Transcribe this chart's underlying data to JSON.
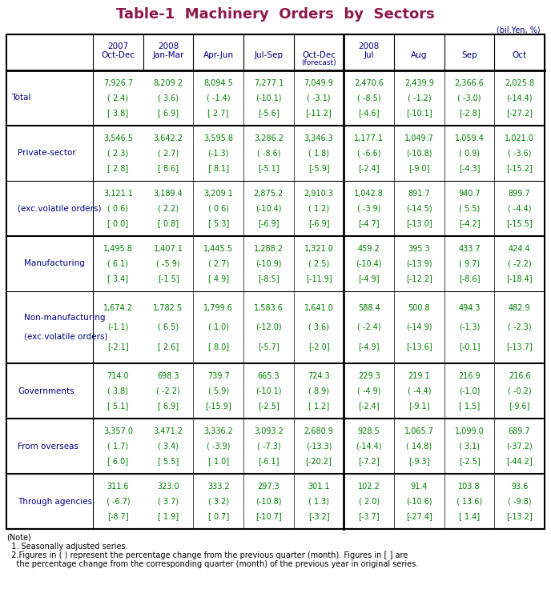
{
  "title": "Table-1  Machinery  Orders  by  Sectors",
  "title_color": "#8B1A4A",
  "unit_label": "(bil.Yen, %)",
  "year_labels": [
    "2007",
    "2008",
    "",
    "",
    "",
    "2008",
    "",
    "",
    ""
  ],
  "period_labels": [
    "Oct-Dec",
    "Jan-Mar",
    "Apr-Jun",
    "Jul-Sep",
    "Oct-Dec",
    "Jul",
    "Aug",
    "Sep",
    "Oct"
  ],
  "forecast_label": "(forecast)",
  "rows": [
    {
      "label": [
        "Total"
      ],
      "label_indent": 0,
      "row_span": 1,
      "values": [
        [
          "7,926.7",
          "( 2.4)",
          "[ 3.8]"
        ],
        [
          "8,209.2",
          "( 3.6)",
          "[ 6.9]"
        ],
        [
          "8,094.5",
          "( -1.4)",
          "[ 2.7]"
        ],
        [
          "7,277.1",
          "(-10.1)",
          "[-5.6]"
        ],
        [
          "7,049.9",
          "( -3.1)",
          "[-11.2]"
        ],
        [
          "2,470.6",
          "( -8.5)",
          "[-4.6]"
        ],
        [
          "2,439.9",
          "( -1.2)",
          "[-10.1]"
        ],
        [
          "2,366.6",
          "( -3.0)",
          "[-2.8]"
        ],
        [
          "2,025.8",
          "(-14.4)",
          "[-27.2]"
        ]
      ],
      "thick_bottom": true
    },
    {
      "label": [
        "Private-sector"
      ],
      "label_indent": 1,
      "row_span": 1,
      "values": [
        [
          "3,546.5",
          "( 2.3)",
          "[ 2.8]"
        ],
        [
          "3,642.2",
          "( 2.7)",
          "[ 8.6]"
        ],
        [
          "3,595.8",
          "(-1.3)",
          "[ 8.1]"
        ],
        [
          "3,286.2",
          "( -8.6)",
          "[-5.1]"
        ],
        [
          "3,346.3",
          "( 1.8)",
          "[-5.9]"
        ],
        [
          "1,177.1",
          "( -6.6)",
          "[-2.4]"
        ],
        [
          "1,049.7",
          "(-10.8)",
          "[-9.0]"
        ],
        [
          "1,059.4",
          "( 0.9)",
          "[-4.3]"
        ],
        [
          "1,021.0",
          "( -3.6)",
          "[-15.2]"
        ]
      ],
      "thick_bottom": false
    },
    {
      "label": [
        "(exc.volatile orders)"
      ],
      "label_indent": 1,
      "row_span": 1,
      "values": [
        [
          "3,121.1",
          "( 0.6)",
          "[ 0.0]"
        ],
        [
          "3,189.4",
          "( 2.2)",
          "[ 0.8]"
        ],
        [
          "3,209.1",
          "( 0.6)",
          "[ 5.3]"
        ],
        [
          "2,875.2",
          "(-10.4)",
          "[-6.9]"
        ],
        [
          "2,910.3",
          "( 1.2)",
          "[-6.9]"
        ],
        [
          "1,042.8",
          "( -3.9)",
          "[-4.7]"
        ],
        [
          "891.7",
          "(-14.5)",
          "[-13.0]"
        ],
        [
          "940.7",
          "( 5.5)",
          "[-4.2]"
        ],
        [
          "899.7",
          "( -4.4)",
          "[-15.5]"
        ]
      ],
      "thick_bottom": true
    },
    {
      "label": [
        "Manufacturing"
      ],
      "label_indent": 2,
      "row_span": 1,
      "values": [
        [
          "1,495.8",
          "( 6.1)",
          "[ 3.4]"
        ],
        [
          "1,407.1",
          "( -5.9)",
          "[-1.5]"
        ],
        [
          "1,445.5",
          "( 2.7)",
          "[ 4.9]"
        ],
        [
          "1,288.2",
          "(-10.9)",
          "[-8.5]"
        ],
        [
          "1,321.0",
          "( 2.5)",
          "[-11.9]"
        ],
        [
          "459.2",
          "(-10.4)",
          "[-4.9]"
        ],
        [
          "395.3",
          "(-13.9)",
          "[-12.2]"
        ],
        [
          "433.7",
          "( 9.7)",
          "[-8.6]"
        ],
        [
          "424.4",
          "( -2.2)",
          "[-18.4]"
        ]
      ],
      "thick_bottom": false
    },
    {
      "label": [
        "Non-manufacturing",
        "(exc.volatile orders)"
      ],
      "label_indent": 2,
      "row_span": 2,
      "values": [
        [
          "1,674.2",
          "(-1.1)",
          "[-2.1]"
        ],
        [
          "1,782.5",
          "( 6.5)",
          "[ 2.6]"
        ],
        [
          "1,799.6",
          "( 1.0)",
          "[ 8.0]"
        ],
        [
          "1,583.6",
          "(-12.0)",
          "[-5.7]"
        ],
        [
          "1,641.0",
          "( 3.6)",
          "[-2.0]"
        ],
        [
          "588.4",
          "( -2.4)",
          "[-4.9]"
        ],
        [
          "500.8",
          "(-14.9)",
          "[-13.6]"
        ],
        [
          "494.3",
          "(-1.3)",
          "[-0.1]"
        ],
        [
          "482.9",
          "( -2.3)",
          "[-13.7]"
        ]
      ],
      "thick_bottom": true
    },
    {
      "label": [
        "Governments"
      ],
      "label_indent": 1,
      "row_span": 1,
      "values": [
        [
          "714.0",
          "( 3.8)",
          "[ 5.1]"
        ],
        [
          "698.3",
          "( -2.2)",
          "[ 6.9]"
        ],
        [
          "739.7",
          "( 5.9)",
          "[-15.9]"
        ],
        [
          "665.3",
          "(-10.1)",
          "[-2.5]"
        ],
        [
          "724.3",
          "( 8.9)",
          "[ 1.2]"
        ],
        [
          "229.3",
          "( -4.9)",
          "[-2.4]"
        ],
        [
          "219.1",
          "( -4.4)",
          "[-9.1]"
        ],
        [
          "216.9",
          "(-1.0)",
          "[ 1.5]"
        ],
        [
          "216.6",
          "( -0.2)",
          "[-9.6]"
        ]
      ],
      "thick_bottom": true
    },
    {
      "label": [
        "From overseas"
      ],
      "label_indent": 1,
      "row_span": 1,
      "values": [
        [
          "3,357.0",
          "( 1.7)",
          "[ 6.0]"
        ],
        [
          "3,471.2",
          "( 3.4)",
          "[ 5.5]"
        ],
        [
          "3,336.2",
          "( -3.9)",
          "[ 1.0]"
        ],
        [
          "3,093.2",
          "( -7.3)",
          "[-6.1]"
        ],
        [
          "2,680.9",
          "(-13.3)",
          "[-20.2]"
        ],
        [
          "928.5",
          "(-14.4)",
          "[-7.2]"
        ],
        [
          "1,065.7",
          "( 14.8)",
          "[-9.3]"
        ],
        [
          "1,099.0",
          "( 3.1)",
          "[-2.5]"
        ],
        [
          "689.7",
          "(-37.2)",
          "[-44.2]"
        ]
      ],
      "thick_bottom": true
    },
    {
      "label": [
        "Through agencies"
      ],
      "label_indent": 1,
      "row_span": 1,
      "values": [
        [
          "311.6",
          "( -6.7)",
          "[-8.7]"
        ],
        [
          "323.0",
          "( 3.7)",
          "[ 1.9]"
        ],
        [
          "333.2",
          "( 3.2)",
          "[ 0.7]"
        ],
        [
          "297.3",
          "(-10.8)",
          "[-10.7]"
        ],
        [
          "301.1",
          "( 1.3)",
          "[-3.2]"
        ],
        [
          "102.2",
          "( 2.0)",
          "[-3.7]"
        ],
        [
          "91.4",
          "(-10.6)",
          "[-27.4]"
        ],
        [
          "103.8",
          "( 13.6)",
          "[ 1.4]"
        ],
        [
          "93.6",
          "( -9.8)",
          "[-13.2]"
        ]
      ],
      "thick_bottom": true
    }
  ],
  "note_lines": [
    "(Note)",
    "  1. Seasonally adjusted series.",
    "  2.Figures in ( ) represent the percentage change from the previous quarter (month). Figures in [ ] are",
    "    the percentage change from the corresponding quarter (month) of the previous year in original series."
  ],
  "data_color": "#008000",
  "label_color": "#000080",
  "header_color": "#000080",
  "note_color": "#000000",
  "bg_color": "#FFFFFF"
}
